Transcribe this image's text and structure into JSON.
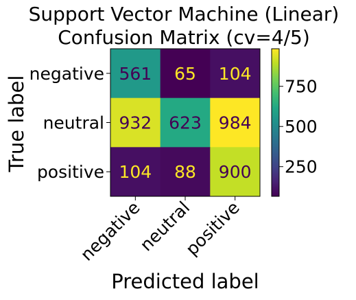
{
  "chart_data": {
    "type": "heatmap",
    "title": [
      "Support Vector Machine (Linear)",
      "Confusion Matrix (cv=4/5)"
    ],
    "xlabel": "Predicted label",
    "ylabel": "True label",
    "x_categories": [
      "negative",
      "neutral",
      "positive"
    ],
    "y_categories": [
      "negative",
      "neutral",
      "positive"
    ],
    "values": [
      [
        561,
        65,
        104
      ],
      [
        932,
        623,
        984
      ],
      [
        104,
        88,
        900
      ]
    ],
    "colormap": "viridis",
    "colorbar": {
      "ticks": [
        250,
        500,
        750
      ],
      "min": 65,
      "max": 984
    }
  }
}
